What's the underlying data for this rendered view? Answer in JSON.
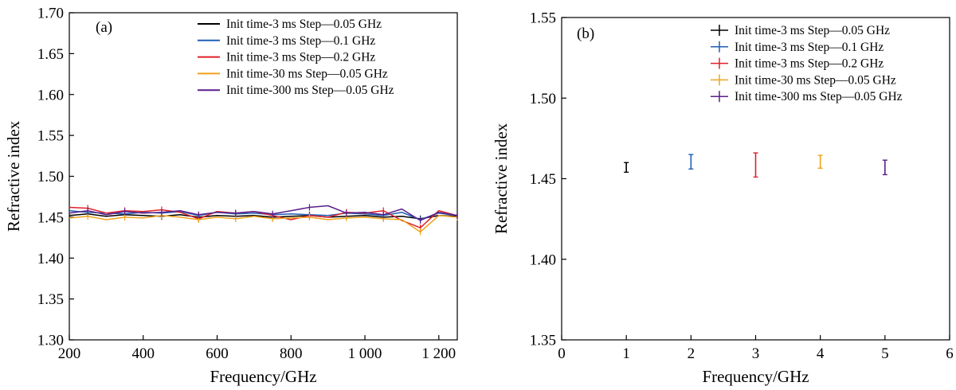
{
  "chart_data": [
    {
      "type": "line",
      "panel_label": "(a)",
      "xlabel": "Frequency/GHz",
      "ylabel": "Refractive index",
      "xlim": [
        200,
        1250
      ],
      "ylim": [
        1.3,
        1.7
      ],
      "xticks": [
        200,
        400,
        600,
        800,
        1000,
        1200
      ],
      "xtick_labels": [
        "200",
        "400",
        "600",
        "800",
        "1 000",
        "1 200"
      ],
      "yticks": [
        1.3,
        1.35,
        1.4,
        1.45,
        1.5,
        1.55,
        1.6,
        1.65,
        1.7
      ],
      "ytick_labels": [
        "1.30",
        "1.35",
        "1.40",
        "1.45",
        "1.50",
        "1.55",
        "1.60",
        "1.65",
        "1.70"
      ],
      "grid": false,
      "legend_position": "top-right",
      "series": [
        {
          "name": "Init time-3 ms  Step—0.05 GHz",
          "color": "#000000",
          "x": [
            200,
            250,
            300,
            350,
            400,
            450,
            500,
            550,
            600,
            650,
            700,
            750,
            800,
            850,
            900,
            950,
            1000,
            1050,
            1100,
            1150,
            1200,
            1250
          ],
          "y": [
            1.452,
            1.454,
            1.451,
            1.453,
            1.452,
            1.451,
            1.453,
            1.45,
            1.452,
            1.451,
            1.452,
            1.45,
            1.451,
            1.452,
            1.45,
            1.451,
            1.452,
            1.45,
            1.451,
            1.448,
            1.452,
            1.451
          ]
        },
        {
          "name": "Init time-3 ms  Step—0.1 GHz",
          "color": "#1f5fb4",
          "x": [
            200,
            250,
            300,
            350,
            400,
            450,
            500,
            550,
            600,
            650,
            700,
            750,
            800,
            850,
            900,
            950,
            1000,
            1050,
            1100,
            1150,
            1200,
            1250
          ],
          "y": [
            1.458,
            1.456,
            1.455,
            1.454,
            1.456,
            1.455,
            1.457,
            1.452,
            1.456,
            1.454,
            1.455,
            1.453,
            1.454,
            1.453,
            1.452,
            1.455,
            1.454,
            1.452,
            1.456,
            1.447,
            1.455,
            1.452
          ]
        },
        {
          "name": "Init time-3 ms  Step—0.2 GHz",
          "color": "#e0202a",
          "x": [
            200,
            250,
            300,
            350,
            400,
            450,
            500,
            550,
            600,
            650,
            700,
            750,
            800,
            850,
            900,
            950,
            1000,
            1050,
            1100,
            1150,
            1200,
            1250
          ],
          "y": [
            1.462,
            1.461,
            1.455,
            1.458,
            1.457,
            1.459,
            1.456,
            1.448,
            1.457,
            1.455,
            1.457,
            1.452,
            1.447,
            1.452,
            1.45,
            1.456,
            1.455,
            1.458,
            1.446,
            1.437,
            1.458,
            1.452
          ]
        },
        {
          "name": "Init time-30 ms  Step—0.05 GHz",
          "color": "#f0a21c",
          "x": [
            200,
            250,
            300,
            350,
            400,
            450,
            500,
            550,
            600,
            650,
            700,
            750,
            800,
            850,
            900,
            950,
            1000,
            1050,
            1100,
            1150,
            1200,
            1250
          ],
          "y": [
            1.449,
            1.451,
            1.447,
            1.45,
            1.449,
            1.452,
            1.45,
            1.447,
            1.45,
            1.448,
            1.451,
            1.448,
            1.449,
            1.45,
            1.447,
            1.449,
            1.45,
            1.448,
            1.447,
            1.432,
            1.452,
            1.45
          ]
        },
        {
          "name": "Init time-300 ms  Step—0.05 GHz",
          "color": "#5a1f8c",
          "x": [
            200,
            250,
            300,
            350,
            400,
            450,
            500,
            550,
            600,
            650,
            700,
            750,
            800,
            850,
            900,
            950,
            1000,
            1050,
            1100,
            1150,
            1200,
            1250
          ],
          "y": [
            1.455,
            1.458,
            1.453,
            1.457,
            1.455,
            1.456,
            1.458,
            1.453,
            1.456,
            1.455,
            1.457,
            1.454,
            1.458,
            1.462,
            1.464,
            1.455,
            1.456,
            1.453,
            1.46,
            1.446,
            1.456,
            1.452
          ]
        }
      ]
    },
    {
      "type": "scatter",
      "panel_label": "(b)",
      "xlabel": "Frequency/GHz",
      "ylabel": "Refractive index",
      "xlim": [
        0,
        6
      ],
      "ylim": [
        1.35,
        1.55
      ],
      "xticks": [
        0,
        1,
        2,
        3,
        4,
        5,
        6
      ],
      "xtick_labels": [
        "0",
        "1",
        "2",
        "3",
        "4",
        "5",
        "6"
      ],
      "yticks": [
        1.35,
        1.4,
        1.45,
        1.5,
        1.55
      ],
      "ytick_labels": [
        "1.35",
        "1.40",
        "1.45",
        "1.50",
        "1.55"
      ],
      "grid": false,
      "legend_position": "top-right",
      "series": [
        {
          "name": "Init time-3 ms  Step—0.05 GHz",
          "color": "#000000",
          "x": 1,
          "y": 1.457,
          "err": 0.003
        },
        {
          "name": "Init time-3 ms  Step—0.1 GHz",
          "color": "#1f5fb4",
          "x": 2,
          "y": 1.4605,
          "err": 0.0045
        },
        {
          "name": "Init time-3 ms  Step—0.2 GHz",
          "color": "#e0202a",
          "x": 3,
          "y": 1.4585,
          "err": 0.0075
        },
        {
          "name": "Init time-30 ms  Step—0.05 GHz",
          "color": "#f0a21c",
          "x": 4,
          "y": 1.4605,
          "err": 0.004
        },
        {
          "name": "Init time-300 ms  Step—0.05 GHz",
          "color": "#5a1f8c",
          "x": 5,
          "y": 1.457,
          "err": 0.0045
        }
      ]
    }
  ]
}
